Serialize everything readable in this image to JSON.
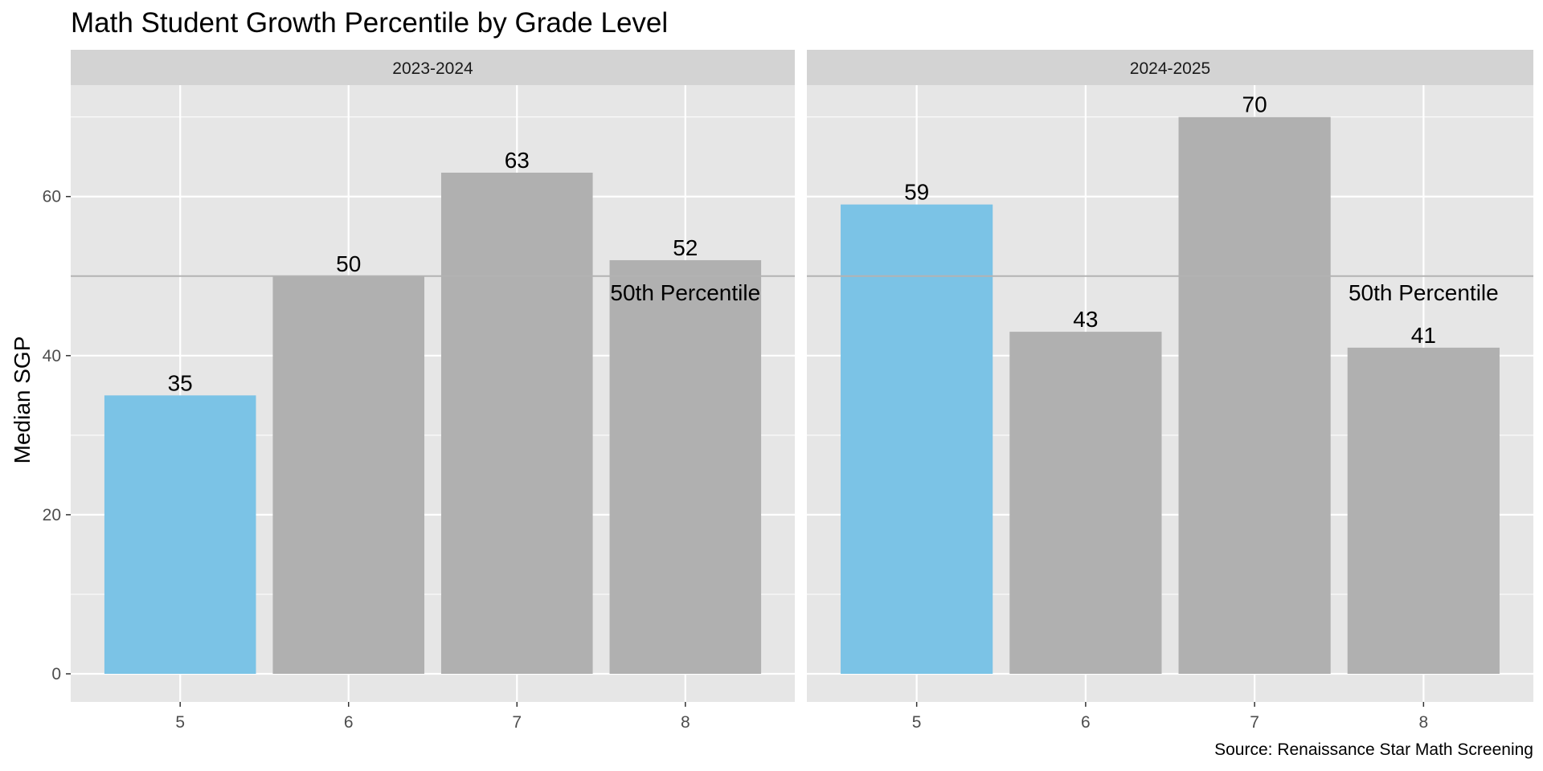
{
  "chart_data": {
    "type": "bar",
    "title": "Math Student Growth Percentile by Grade Level",
    "ylabel": "Median SGP",
    "xlabel": "",
    "caption": "Source: Renaissance Star Math Screening",
    "ylim": [
      0,
      73.5
    ],
    "yticks": [
      0,
      20,
      40,
      60
    ],
    "grid": true,
    "legend": "none",
    "categories": [
      "5",
      "6",
      "7",
      "8"
    ],
    "reference_line": {
      "value": 50,
      "label": "50th Percentile",
      "color": "#b3b3b3"
    },
    "colors": {
      "highlight": "#7bc3e6",
      "default": "#b0b0b0",
      "panel_bg": "#e6e6e6",
      "strip_bg": "#d3d3d3",
      "grid": "#ffffff"
    },
    "panels": [
      {
        "name": "2023-2024",
        "values": [
          35,
          50,
          63,
          52
        ],
        "highlight": [
          true,
          false,
          false,
          false
        ]
      },
      {
        "name": "2024-2025",
        "values": [
          59,
          43,
          70,
          41
        ],
        "highlight": [
          true,
          false,
          false,
          false
        ]
      }
    ]
  }
}
